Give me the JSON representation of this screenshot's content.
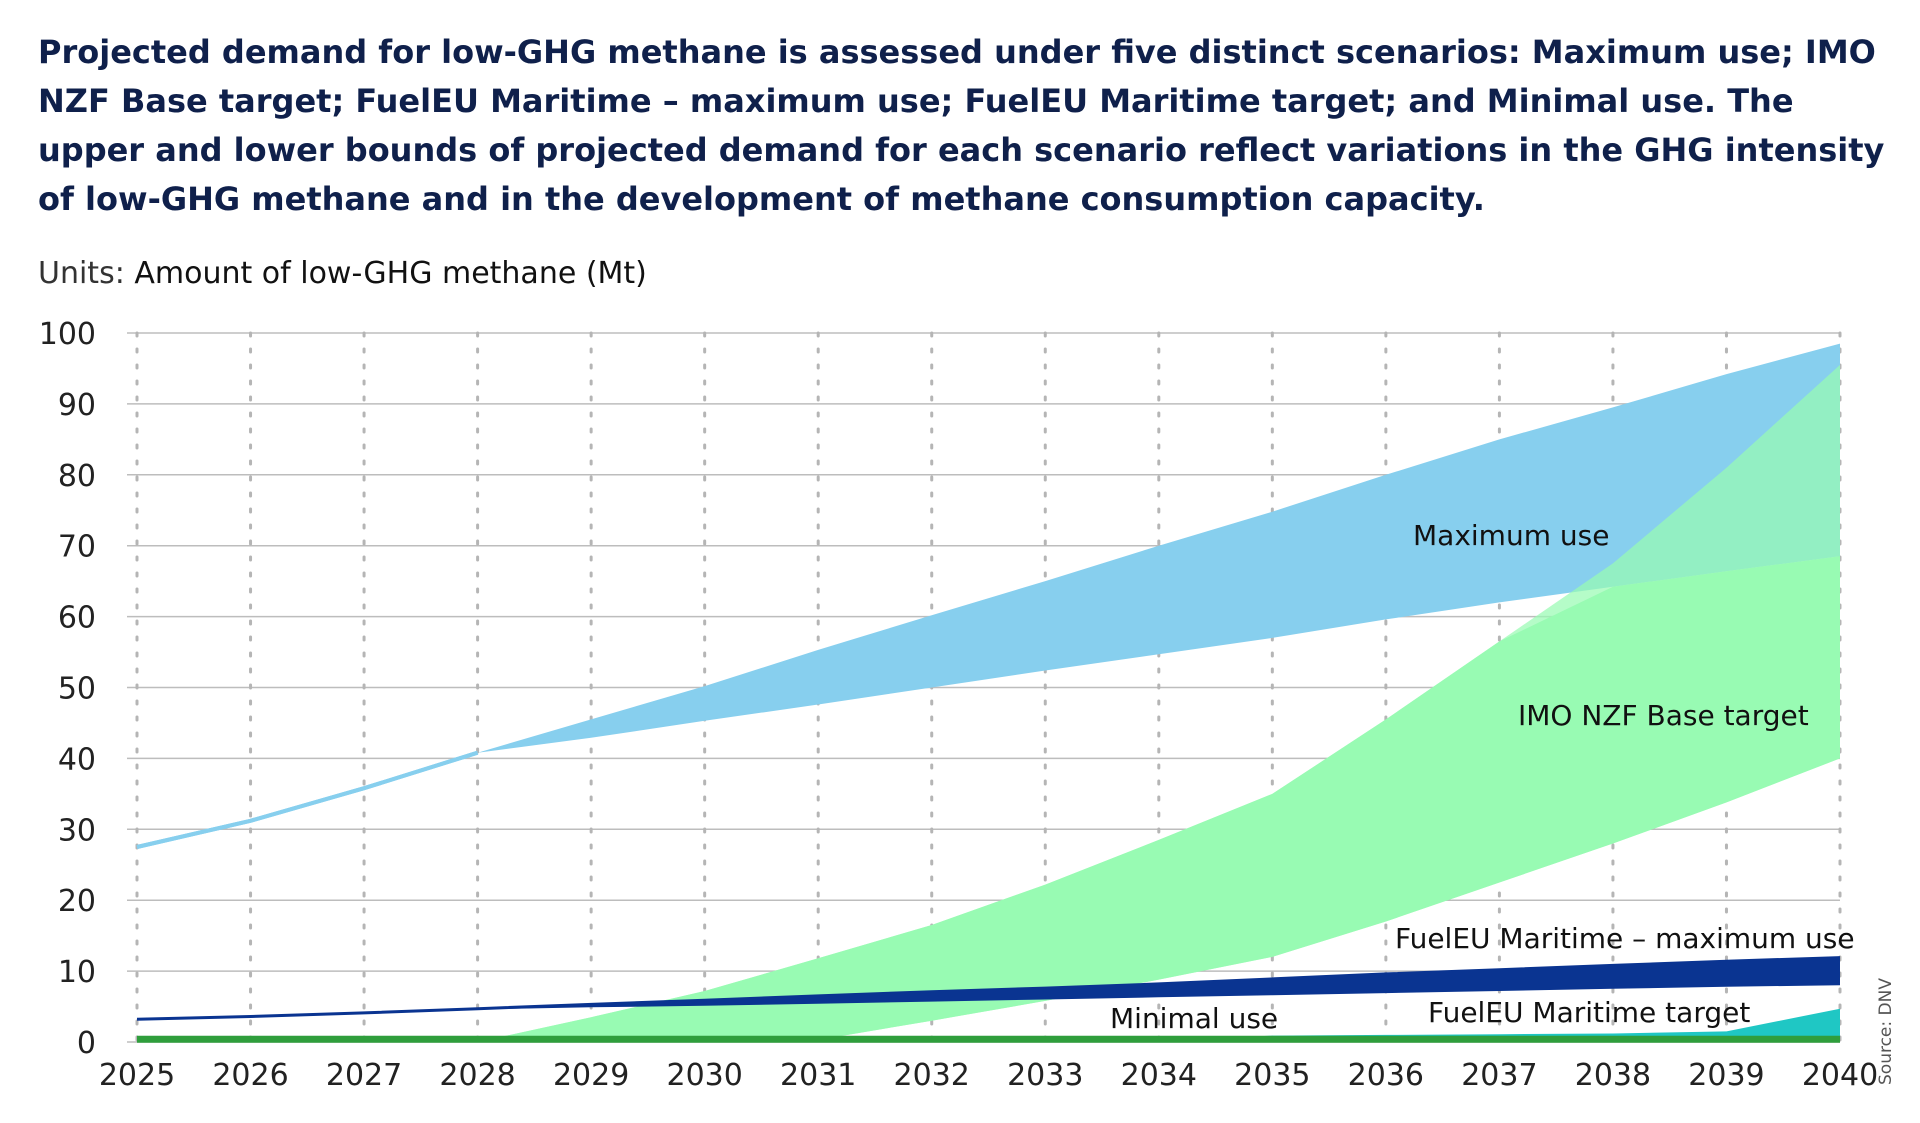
{
  "title": "Projected demand for low-GHG methane is assessed under five distinct scenarios: Maximum use; IMO NZF Base target; FuelEU Maritime – maximum use; FuelEU Maritime target; and Minimal use. The upper and lower bounds of projected demand for each scenario reflect variations in the GHG intensity of low-GHG methane and in the development of methane consumption capacity.",
  "units_prefix": "Units:",
  "units_text": "Amount of low-GHG methane (Mt)",
  "source": "Source: DNV",
  "chart_data": {
    "type": "area",
    "x": [
      2025,
      2026,
      2027,
      2028,
      2029,
      2030,
      2031,
      2032,
      2033,
      2034,
      2035,
      2036,
      2037,
      2038,
      2039,
      2040
    ],
    "xticks": [
      "2025",
      "2026",
      "2027",
      "2028",
      "2029",
      "2030",
      "2031",
      "2032",
      "2033",
      "2034",
      "2035",
      "2036",
      "2037",
      "2038",
      "2039",
      "2040"
    ],
    "yticks": [
      "0",
      "10",
      "20",
      "30",
      "40",
      "50",
      "60",
      "70",
      "80",
      "90",
      "100"
    ],
    "ylim": [
      0,
      100
    ],
    "grid": "vertical dotted, horizontal solid",
    "series": [
      {
        "name": "Maximum use",
        "color": "#87cfee",
        "upper": [
          27.5,
          31.2,
          35.8,
          40.8,
          45.5,
          50.2,
          55.3,
          60.2,
          65.0,
          70.0,
          74.8,
          80.0,
          85.0,
          89.5,
          94.2,
          98.5
        ],
        "lower": [
          27.5,
          31.2,
          35.8,
          40.8,
          42.9,
          45.3,
          47.6,
          50.0,
          52.4,
          54.7,
          57.0,
          59.6,
          62.0,
          64.2,
          66.4,
          68.5
        ]
      },
      {
        "name": "IMO NZF Base target",
        "color": "#98fbb3",
        "upper": [
          0,
          0,
          0,
          0,
          3.5,
          7.2,
          11.8,
          16.5,
          22.2,
          28.5,
          35.0,
          45.5,
          56.5,
          67.5,
          81.0,
          95.5
        ],
        "lower": [
          0,
          0,
          0,
          0,
          0,
          0,
          0.3,
          3.0,
          5.8,
          8.8,
          12.0,
          17.0,
          22.5,
          28.0,
          33.8,
          40.0
        ]
      },
      {
        "name": "FuelEU Maritime – maximum use",
        "color": "#0a3491",
        "upper": [
          3.2,
          3.6,
          4.1,
          4.7,
          5.3,
          5.9,
          6.5,
          7.1,
          7.6,
          8.2,
          8.9,
          9.6,
          10.2,
          10.8,
          11.4,
          11.9
        ],
        "lower": [
          3.2,
          3.6,
          4.1,
          4.6,
          4.9,
          5.1,
          5.4,
          5.7,
          6.0,
          6.3,
          6.6,
          6.9,
          7.2,
          7.5,
          7.8,
          8.0
        ]
      },
      {
        "name": "FuelEU Maritime target",
        "color": "#1fc7c4",
        "upper": [
          0,
          0,
          0,
          0,
          0,
          0,
          0,
          0,
          0,
          0,
          0.9,
          1.0,
          1.1,
          1.2,
          1.5,
          4.7
        ],
        "lower": [
          0,
          0,
          0,
          0,
          0,
          0,
          0,
          0,
          0,
          0,
          0,
          0,
          0,
          0,
          0,
          0
        ]
      },
      {
        "name": "Minimal use",
        "color": "#2f9e3c",
        "upper": [
          0.4,
          0.4,
          0.4,
          0.4,
          0.4,
          0.4,
          0.4,
          0.4,
          0.4,
          0.4,
          0.4,
          0.4,
          0.4,
          0.4,
          0.4,
          0.4
        ],
        "lower": [
          0,
          0,
          0,
          0,
          0,
          0,
          0,
          0,
          0,
          0,
          0,
          0,
          0,
          0,
          0,
          0
        ]
      }
    ],
    "labels": {
      "maximum_use": "Maximum use",
      "imo_nzf": "IMO NZF Base target",
      "fueleu_max": "FuelEU Maritime – maximum use",
      "fueleu_target": "FuelEU Maritime target",
      "minimal_use": "Minimal use"
    }
  }
}
